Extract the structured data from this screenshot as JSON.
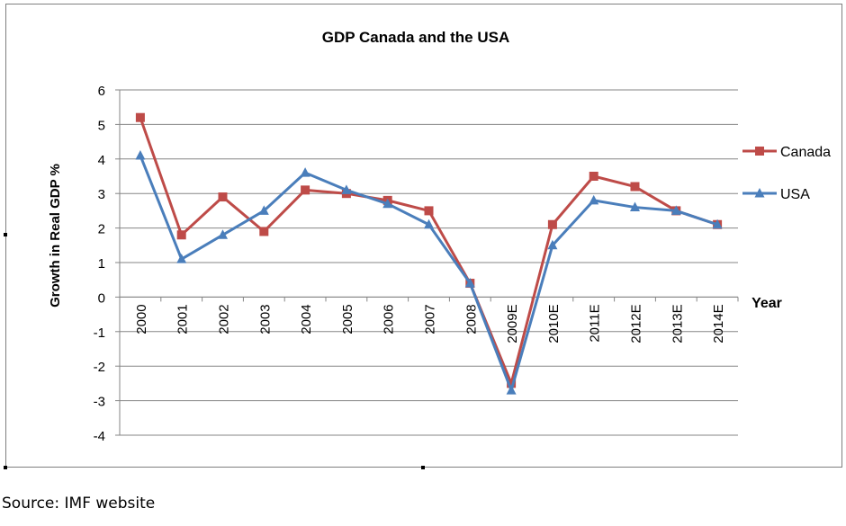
{
  "source_note": "Source: IMF website",
  "chart_data": {
    "type": "line",
    "title": "GDP Canada and the USA",
    "xlabel": "Year",
    "ylabel": "Growth in Real GDP %",
    "ylim": [
      -4,
      6
    ],
    "yticks": [
      "6",
      "5",
      "4",
      "3",
      "2",
      "1",
      "0",
      "-1",
      "-2",
      "-3",
      "-4"
    ],
    "categories": [
      "2000",
      "2001",
      "2002",
      "2003",
      "2004",
      "2005",
      "2006",
      "2007",
      "2008",
      "2009E",
      "2010E",
      "2011E",
      "2012E",
      "2013E",
      "2014E"
    ],
    "grid": true,
    "legend_position": "right",
    "series": [
      {
        "name": "Canada",
        "color": "#be4b48",
        "marker": "square",
        "values": [
          5.2,
          1.8,
          2.9,
          1.9,
          3.1,
          3.0,
          2.8,
          2.5,
          0.4,
          -2.5,
          2.1,
          3.5,
          3.2,
          2.5,
          2.1
        ]
      },
      {
        "name": "USA",
        "color": "#4a7ebb",
        "marker": "triangle",
        "values": [
          4.1,
          1.1,
          1.8,
          2.5,
          3.6,
          3.1,
          2.7,
          2.1,
          0.4,
          -2.7,
          1.5,
          2.8,
          2.6,
          2.5,
          2.1
        ]
      }
    ]
  }
}
